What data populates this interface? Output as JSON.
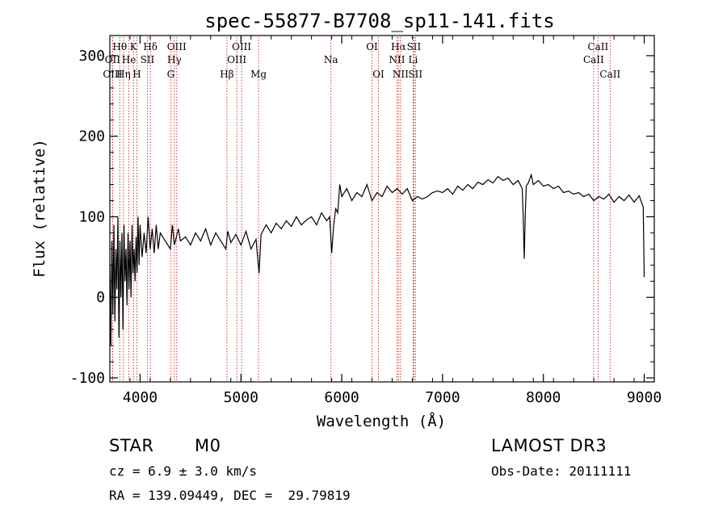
{
  "chart_data": {
    "type": "line",
    "title": "spec-55877-B7708_sp11-141.fits",
    "xlabel": "Wavelength (Å)",
    "ylabel": "Flux (relative)",
    "xlim": [
      3700,
      9100
    ],
    "ylim": [
      -105,
      325
    ],
    "xticks": [
      4000,
      5000,
      6000,
      7000,
      8000,
      9000
    ],
    "yticks": [
      -100,
      0,
      100,
      200,
      300
    ],
    "line_color": "#000000",
    "marker_color": "#cc2222",
    "series": [
      {
        "name": "flux",
        "points": [
          [
            3700,
            40
          ],
          [
            3710,
            -60
          ],
          [
            3720,
            70
          ],
          [
            3730,
            -20
          ],
          [
            3740,
            90
          ],
          [
            3750,
            -30
          ],
          [
            3760,
            60
          ],
          [
            3770,
            10
          ],
          [
            3780,
            100
          ],
          [
            3790,
            -50
          ],
          [
            3800,
            70
          ],
          [
            3810,
            0
          ],
          [
            3820,
            80
          ],
          [
            3830,
            -40
          ],
          [
            3840,
            90
          ],
          [
            3850,
            20
          ],
          [
            3860,
            60
          ],
          [
            3870,
            -10
          ],
          [
            3880,
            80
          ],
          [
            3890,
            10
          ],
          [
            3900,
            70
          ],
          [
            3910,
            0
          ],
          [
            3920,
            90
          ],
          [
            3930,
            30
          ],
          [
            3940,
            60
          ],
          [
            3950,
            20
          ],
          [
            3960,
            75
          ],
          [
            3970,
            30
          ],
          [
            3980,
            100
          ],
          [
            3990,
            40
          ],
          [
            4000,
            90
          ],
          [
            4020,
            50
          ],
          [
            4040,
            80
          ],
          [
            4060,
            55
          ],
          [
            4080,
            100
          ],
          [
            4100,
            60
          ],
          [
            4120,
            85
          ],
          [
            4140,
            55
          ],
          [
            4160,
            90
          ],
          [
            4180,
            60
          ],
          [
            4200,
            80
          ],
          [
            4250,
            70
          ],
          [
            4300,
            60
          ],
          [
            4320,
            90
          ],
          [
            4340,
            65
          ],
          [
            4380,
            85
          ],
          [
            4400,
            70
          ],
          [
            4450,
            75
          ],
          [
            4500,
            65
          ],
          [
            4550,
            80
          ],
          [
            4600,
            70
          ],
          [
            4650,
            85
          ],
          [
            4700,
            65
          ],
          [
            4750,
            80
          ],
          [
            4800,
            70
          ],
          [
            4850,
            60
          ],
          [
            4870,
            82
          ],
          [
            4900,
            68
          ],
          [
            4950,
            78
          ],
          [
            5000,
            65
          ],
          [
            5050,
            82
          ],
          [
            5100,
            60
          ],
          [
            5150,
            72
          ],
          [
            5180,
            30
          ],
          [
            5200,
            78
          ],
          [
            5250,
            90
          ],
          [
            5300,
            80
          ],
          [
            5350,
            92
          ],
          [
            5400,
            85
          ],
          [
            5450,
            95
          ],
          [
            5500,
            88
          ],
          [
            5550,
            100
          ],
          [
            5600,
            90
          ],
          [
            5650,
            96
          ],
          [
            5700,
            100
          ],
          [
            5750,
            90
          ],
          [
            5800,
            105
          ],
          [
            5850,
            95
          ],
          [
            5880,
            100
          ],
          [
            5900,
            55
          ],
          [
            5920,
            90
          ],
          [
            5940,
            110
          ],
          [
            5960,
            105
          ],
          [
            5980,
            140
          ],
          [
            6000,
            125
          ],
          [
            6050,
            135
          ],
          [
            6100,
            120
          ],
          [
            6150,
            130
          ],
          [
            6200,
            125
          ],
          [
            6250,
            140
          ],
          [
            6300,
            120
          ],
          [
            6350,
            130
          ],
          [
            6400,
            125
          ],
          [
            6450,
            138
          ],
          [
            6500,
            130
          ],
          [
            6550,
            135
          ],
          [
            6600,
            128
          ],
          [
            6650,
            135
          ],
          [
            6700,
            120
          ],
          [
            6750,
            125
          ],
          [
            6800,
            122
          ],
          [
            6850,
            125
          ],
          [
            6900,
            130
          ],
          [
            6950,
            132
          ],
          [
            7000,
            130
          ],
          [
            7050,
            135
          ],
          [
            7100,
            128
          ],
          [
            7150,
            138
          ],
          [
            7200,
            133
          ],
          [
            7250,
            140
          ],
          [
            7300,
            135
          ],
          [
            7350,
            143
          ],
          [
            7400,
            140
          ],
          [
            7450,
            146
          ],
          [
            7500,
            142
          ],
          [
            7550,
            150
          ],
          [
            7600,
            145
          ],
          [
            7650,
            148
          ],
          [
            7700,
            140
          ],
          [
            7750,
            145
          ],
          [
            7790,
            135
          ],
          [
            7800,
            100
          ],
          [
            7810,
            48
          ],
          [
            7820,
            100
          ],
          [
            7830,
            138
          ],
          [
            7850,
            142
          ],
          [
            7880,
            152
          ],
          [
            7900,
            140
          ],
          [
            7950,
            145
          ],
          [
            8000,
            138
          ],
          [
            8050,
            140
          ],
          [
            8100,
            135
          ],
          [
            8150,
            138
          ],
          [
            8200,
            130
          ],
          [
            8250,
            132
          ],
          [
            8300,
            128
          ],
          [
            8350,
            130
          ],
          [
            8400,
            125
          ],
          [
            8450,
            128
          ],
          [
            8500,
            120
          ],
          [
            8550,
            125
          ],
          [
            8600,
            122
          ],
          [
            8650,
            128
          ],
          [
            8700,
            118
          ],
          [
            8750,
            125
          ],
          [
            8800,
            120
          ],
          [
            8850,
            127
          ],
          [
            8900,
            118
          ],
          [
            8950,
            126
          ],
          [
            8990,
            112
          ],
          [
            9000,
            25
          ]
        ]
      }
    ],
    "line_markers": [
      {
        "label": "Hθ",
        "wavelength": 3798,
        "row": 1
      },
      {
        "label": "OII",
        "wavelength": 3727,
        "row": 2
      },
      {
        "label": "OIII",
        "wavelength": 3727,
        "row": 3
      },
      {
        "label": "Hη",
        "wavelength": 3835,
        "row": 3
      },
      {
        "label": "He",
        "wavelength": 3889,
        "row": 2
      },
      {
        "label": "K",
        "wavelength": 3934,
        "row": 1
      },
      {
        "label": "H",
        "wavelength": 3968,
        "row": 3
      },
      {
        "label": "SII",
        "wavelength": 4072,
        "row": 2
      },
      {
        "label": "Hδ",
        "wavelength": 4102,
        "row": 1
      },
      {
        "label": "OIII",
        "wavelength": 4363,
        "row": 1
      },
      {
        "label": "Hγ",
        "wavelength": 4340,
        "row": 2
      },
      {
        "label": "G",
        "wavelength": 4304,
        "row": 3
      },
      {
        "label": "Hβ",
        "wavelength": 4861,
        "row": 3
      },
      {
        "label": "OIII",
        "wavelength": 4959,
        "row": 2
      },
      {
        "label": "OIII",
        "wavelength": 5007,
        "row": 1
      },
      {
        "label": "Mg",
        "wavelength": 5175,
        "row": 3
      },
      {
        "label": "Na",
        "wavelength": 5893,
        "row": 2
      },
      {
        "label": "OI",
        "wavelength": 6300,
        "row": 1
      },
      {
        "label": "OI",
        "wavelength": 6364,
        "row": 3
      },
      {
        "label": "Hα",
        "wavelength": 6563,
        "row": 1
      },
      {
        "label": "NII",
        "wavelength": 6548,
        "row": 2
      },
      {
        "label": "NII",
        "wavelength": 6583,
        "row": 3
      },
      {
        "label": "SII",
        "wavelength": 6716,
        "row": 1
      },
      {
        "label": "Li",
        "wavelength": 6708,
        "row": 2
      },
      {
        "label": "SII",
        "wavelength": 6731,
        "row": 3
      },
      {
        "label": "CaII",
        "wavelength": 8542,
        "row": 1
      },
      {
        "label": "CaII",
        "wavelength": 8498,
        "row": 2
      },
      {
        "label": "CaII",
        "wavelength": 8662,
        "row": 3
      }
    ]
  },
  "info": {
    "object_type": "STAR",
    "subclass": "M0",
    "survey": "LAMOST DR3",
    "cz": "cz = 6.9 ± 3.0 km/s",
    "obs_date": "Obs-Date: 20111111",
    "coords": "RA = 139.09449, DEC =  29.79819"
  }
}
